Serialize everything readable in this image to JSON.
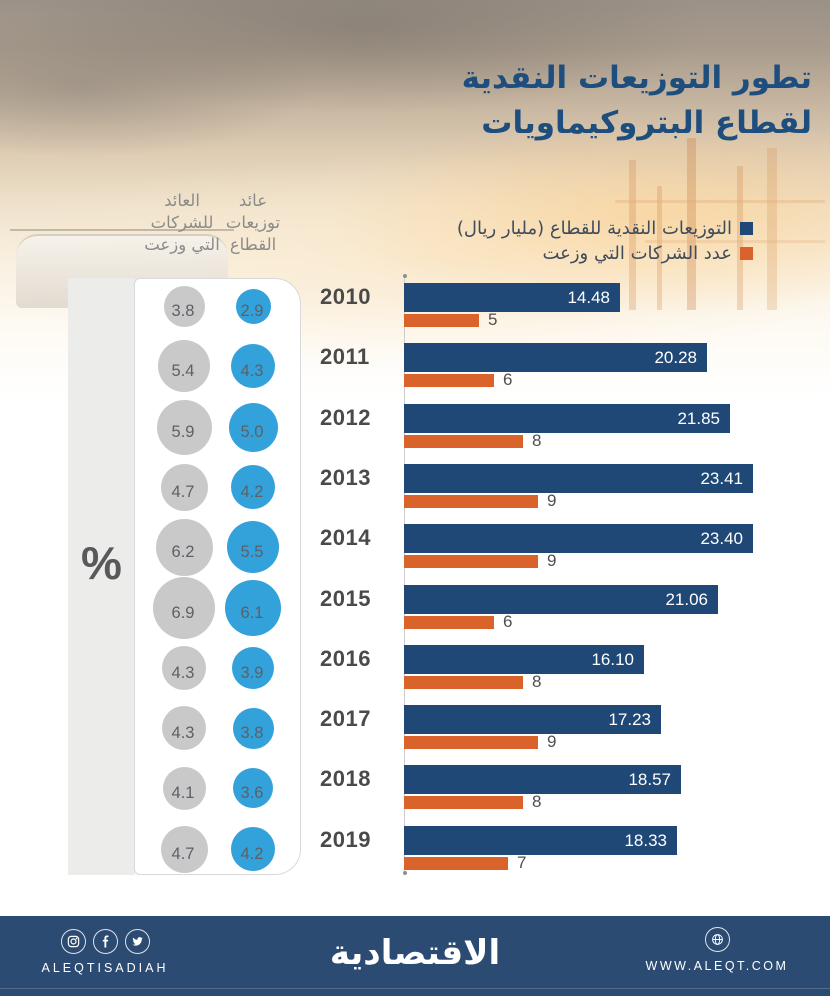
{
  "title": {
    "line1": "تطور التوزيعات النقدية",
    "line2": "لقطاع البتروكيماويات"
  },
  "legend": [
    {
      "label": "التوزيعات النقدية للقطاع (مليار ريال)",
      "color": "#1f4877"
    },
    {
      "label": "عدد الشركات التي وزعت",
      "color": "#d9632a"
    }
  ],
  "circle_columns": {
    "unit_symbol": "%",
    "sector_yield_header": "عائد\nتوزيعات\nالقطاع",
    "companies_yield_header": "العائد\nللشركات\nالتي وزعت",
    "sector_color": "#33a1da",
    "companies_color": "#c9c9c9"
  },
  "chart_data": {
    "type": "bar",
    "orientation": "horizontal",
    "categories": [
      "2010",
      "2011",
      "2012",
      "2013",
      "2014",
      "2015",
      "2016",
      "2017",
      "2018",
      "2019"
    ],
    "series": [
      {
        "name": "التوزيعات النقدية للقطاع (مليار ريال)",
        "color": "#1f4877",
        "values": [
          14.48,
          20.28,
          21.85,
          23.41,
          23.4,
          21.06,
          16.1,
          17.23,
          18.57,
          18.33
        ],
        "labels": [
          "14.48",
          "20.28",
          "21.85",
          "23.41",
          "23.40",
          "21.06",
          "16.10",
          "17.23",
          "18.57",
          "18.33"
        ]
      },
      {
        "name": "عدد الشركات التي وزعت",
        "color": "#d9632a",
        "values": [
          5,
          6,
          8,
          9,
          9,
          6,
          8,
          9,
          8,
          7
        ],
        "labels": [
          "5",
          "6",
          "8",
          "9",
          "9",
          "6",
          "8",
          "9",
          "8",
          "7"
        ]
      },
      {
        "name": "عائد توزيعات القطاع (%)",
        "color": "#33a1da",
        "values": [
          2.9,
          4.3,
          5.0,
          4.2,
          5.5,
          6.1,
          3.9,
          3.8,
          3.6,
          4.2
        ],
        "labels": [
          "2.9",
          "4.3",
          "5.0",
          "4.2",
          "5.5",
          "6.1",
          "3.9",
          "3.8",
          "3.6",
          "4.2"
        ]
      },
      {
        "name": "العائد للشركات التي وزعت (%)",
        "color": "#c9c9c9",
        "values": [
          3.8,
          5.4,
          5.9,
          4.7,
          6.2,
          6.9,
          4.3,
          4.3,
          4.1,
          4.7
        ],
        "labels": [
          "3.8",
          "5.4",
          "5.9",
          "4.7",
          "6.2",
          "6.9",
          "4.3",
          "4.3",
          "4.1",
          "4.7"
        ]
      }
    ],
    "xlim": [
      0,
      25
    ],
    "grid": false,
    "legend_position": "top-right"
  },
  "footer": {
    "brand_latin": "ALEQTISADIAH",
    "brand_arabic": "الاقتصادية",
    "website": "WWW.ALEQT.COM",
    "background_color": "#2c4b72",
    "social_icons": [
      "instagram-icon",
      "facebook-icon",
      "twitter-icon"
    ],
    "website_icon": "globe-icon"
  }
}
